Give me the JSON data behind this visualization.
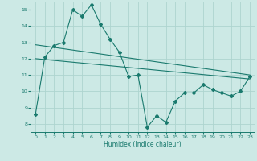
{
  "xlabel": "Humidex (Indice chaleur)",
  "x": [
    0,
    1,
    2,
    3,
    4,
    5,
    6,
    7,
    8,
    9,
    10,
    11,
    12,
    13,
    14,
    15,
    16,
    17,
    18,
    19,
    20,
    21,
    22,
    23
  ],
  "line1": [
    8.6,
    12.1,
    12.8,
    13.0,
    15.0,
    14.6,
    15.3,
    14.1,
    13.2,
    12.4,
    10.9,
    11.0,
    7.8,
    8.5,
    8.1,
    9.4,
    9.9,
    9.9,
    10.4,
    10.1,
    9.9,
    9.7,
    10.0,
    10.9
  ],
  "line2_x": [
    0,
    23
  ],
  "line2_y": [
    12.85,
    11.0
  ],
  "line3_x": [
    0,
    23
  ],
  "line3_y": [
    12.0,
    10.75
  ],
  "ylim": [
    7.5,
    15.5
  ],
  "xlim": [
    -0.5,
    23.5
  ],
  "yticks": [
    8,
    9,
    10,
    11,
    12,
    13,
    14,
    15
  ],
  "xticks": [
    0,
    1,
    2,
    3,
    4,
    5,
    6,
    7,
    8,
    9,
    10,
    11,
    12,
    13,
    14,
    15,
    16,
    17,
    18,
    19,
    20,
    21,
    22,
    23
  ],
  "line_color": "#1a7a6e",
  "bg_color": "#cce9e5",
  "grid_color": "#aed4cf"
}
